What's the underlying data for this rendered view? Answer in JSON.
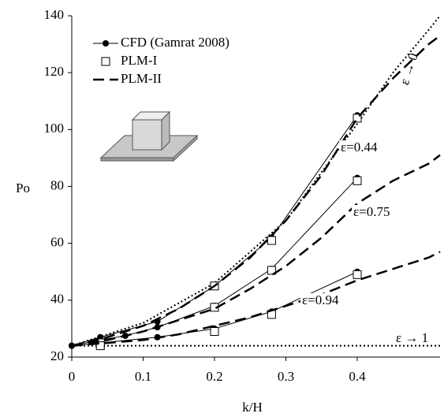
{
  "chart_data": {
    "type": "line",
    "x_label": "k/H",
    "y_label": "Po",
    "xlim": [
      0,
      0.516
    ],
    "ylim": [
      20,
      140
    ],
    "xticks": [
      0,
      0.1,
      0.2,
      0.3,
      0.4
    ],
    "yticks": [
      20,
      40,
      60,
      80,
      100,
      120,
      140
    ],
    "series": [
      {
        "name": "CFD (Gamrat 2008)",
        "color": "#000000",
        "marker": "circle",
        "line": "solid",
        "curves": [
          {
            "x": [
              0,
              0.04,
              0.12,
              0.2,
              0.28,
              0.4
            ],
            "values": [
              24,
              27,
              32.5,
              45,
              62,
              105
            ]
          },
          {
            "x": [
              0,
              0.04,
              0.075,
              0.12,
              0.2,
              0.28,
              0.4
            ],
            "values": [
              24,
              26,
              27.5,
              30.5,
              38,
              51,
              83
            ]
          },
          {
            "x": [
              0,
              0.04,
              0.12,
              0.2,
              0.28,
              0.4
            ],
            "values": [
              24,
              25,
              27,
              30,
              36,
              50
            ]
          }
        ]
      },
      {
        "name": "PLM-I",
        "color": "#000000",
        "marker": "square",
        "curves": [
          {
            "x": [
              0.04,
              0.2,
              0.28,
              0.4
            ],
            "values": [
              24.5,
              45,
              61,
              104
            ]
          },
          {
            "x": [
              0.04,
              0.2,
              0.28,
              0.4
            ],
            "values": [
              25,
              37.5,
              50.5,
              82
            ]
          },
          {
            "x": [
              0.04,
              0.2,
              0.28,
              0.4
            ],
            "values": [
              24,
              29,
              35,
              49
            ]
          }
        ]
      },
      {
        "name": "PLM-II",
        "color": "#000000",
        "line": "dashed",
        "curves": [
          {
            "label": "ε=0.44",
            "x": [
              0,
              0.05,
              0.1,
              0.15,
              0.2,
              0.25,
              0.3,
              0.35,
              0.4,
              0.45,
              0.5,
              0.516
            ],
            "values": [
              24,
              27,
              31,
              37,
              45,
              55,
              68,
              84,
              104,
              118,
              130,
              133
            ]
          },
          {
            "label": "ε=0.75",
            "x": [
              0,
              0.05,
              0.1,
              0.15,
              0.2,
              0.25,
              0.3,
              0.35,
              0.4,
              0.45,
              0.5,
              0.516
            ],
            "values": [
              24,
              26,
              29,
              33,
              37,
              44,
              52,
              62,
              74,
              82,
              88,
              91
            ]
          },
          {
            "label": "ε=0.94",
            "x": [
              0,
              0.05,
              0.1,
              0.15,
              0.2,
              0.25,
              0.3,
              0.35,
              0.4,
              0.45,
              0.5,
              0.516
            ],
            "values": [
              24,
              25,
              26,
              28,
              31,
              34,
              38,
              42,
              47,
              51,
              55,
              57
            ]
          }
        ]
      }
    ],
    "reference_curves": [
      {
        "label": "ε → 0",
        "line": "dotted",
        "x": [
          0,
          0.1,
          0.2,
          0.3,
          0.4,
          0.45,
          0.5,
          0.516
        ],
        "values": [
          24,
          32,
          46,
          68,
          102,
          120,
          135,
          140
        ]
      },
      {
        "label": "ε → 1",
        "line": "dotted",
        "x": [
          0,
          0.516
        ],
        "values": [
          24,
          24
        ]
      }
    ]
  }
}
